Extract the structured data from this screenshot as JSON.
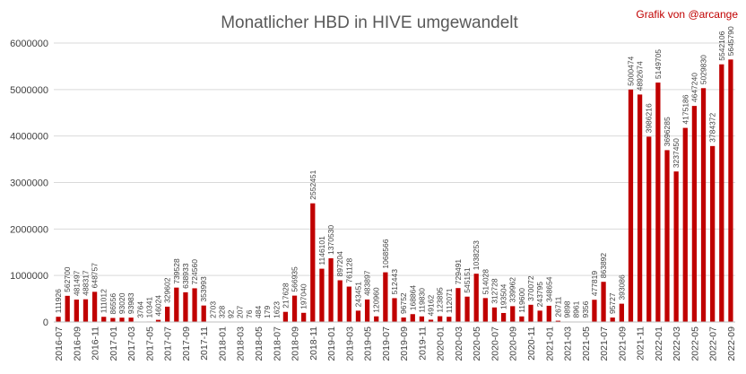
{
  "chart_data": {
    "type": "bar",
    "title": "Monatlicher HBD in HIVE umgewandelt",
    "credit": "Grafik von @arcange",
    "bar_color": "#c00000",
    "grid": true,
    "ylim": [
      0,
      6000000
    ],
    "yticks": [
      "0",
      "1000000",
      "2000000",
      "3000000",
      "4000000",
      "5000000",
      "6000000"
    ],
    "xtick_labels": [
      "2016-07",
      "2016-09",
      "2016-11",
      "2017-01",
      "2017-03",
      "2017-05",
      "2017-07",
      "2017-09",
      "2017-11",
      "2018-01",
      "2018-03",
      "2018-05",
      "2018-07",
      "2018-09",
      "2018-11",
      "2019-01",
      "2019-03",
      "2019-05",
      "2019-07",
      "2019-09",
      "2019-11",
      "2020-01",
      "2020-03",
      "2020-05",
      "2020-07",
      "2020-09",
      "2020-11",
      "2021-01",
      "2021-03",
      "2021-05",
      "2021-07",
      "2021-09",
      "2021-11",
      "2022-01",
      "2022-03",
      "2022-05",
      "2022-07",
      "2022-09"
    ],
    "categories": [
      "2016-07",
      "2016-08",
      "2016-09",
      "2016-10",
      "2016-11",
      "2016-12",
      "2017-01",
      "2017-02",
      "2017-03",
      "2017-04",
      "2017-05",
      "2017-06",
      "2017-07",
      "2017-08",
      "2017-09",
      "2017-10",
      "2017-11",
      "2017-12",
      "2018-01",
      "2018-02",
      "2018-03",
      "2018-04",
      "2018-05",
      "2018-06",
      "2018-07",
      "2018-08",
      "2018-09",
      "2018-10",
      "2018-11",
      "2018-12",
      "2019-01",
      "2019-02",
      "2019-03",
      "2019-04",
      "2019-05",
      "2019-06",
      "2019-07",
      "2019-08",
      "2019-09",
      "2019-10",
      "2019-11",
      "2019-12",
      "2020-01",
      "2020-02",
      "2020-03",
      "2020-04",
      "2020-05",
      "2020-06",
      "2020-07",
      "2020-08",
      "2020-09",
      "2020-10",
      "2020-11",
      "2020-12",
      "2021-01",
      "2021-02",
      "2021-03",
      "2021-04",
      "2021-05",
      "2021-06",
      "2021-07",
      "2021-08",
      "2021-09",
      "2021-10",
      "2021-11",
      "2021-12",
      "2022-01",
      "2022-02",
      "2022-03",
      "2022-04",
      "2022-05",
      "2022-06",
      "2022-07",
      "2022-08",
      "2022-09"
    ],
    "values": [
      111926,
      562700,
      481497,
      488317,
      648757,
      111012,
      86556,
      93020,
      93983,
      3764,
      10341,
      46024,
      329602,
      739528,
      638933,
      724560,
      353993,
      2703,
      328,
      92,
      207,
      76,
      484,
      179,
      1623,
      217628,
      566935,
      197040,
      2552451,
      1146101,
      1370530,
      897204,
      761128,
      243451,
      483897,
      120960,
      1068566,
      512443,
      96752,
      168864,
      119830,
      49162,
      123895,
      112071,
      729491,
      545151,
      1038253,
      514028,
      312728,
      193504,
      339962,
      119600,
      370072,
      243795,
      348654,
      26711,
      9898,
      8961,
      9356,
      477819,
      863892,
      95727,
      393086,
      5000474,
      4892674,
      3986216,
      5149705,
      3696285,
      3237450,
      4175186,
      4647240,
      5029830,
      3784372,
      5542106,
      5645790
    ],
    "data_labels": [
      "111926",
      "562700",
      "481497",
      "488317",
      "648757",
      "111012",
      "86556",
      "93020",
      "93983",
      "3764",
      "10341",
      "46024",
      "329602",
      "739528",
      "638933",
      "724560",
      "353993",
      "2703",
      "328",
      "92",
      "207",
      "76",
      "484",
      "179",
      "1623",
      "217628",
      "566935",
      "197040",
      "2552451",
      "1146101",
      "1370530",
      "897204",
      "761128",
      "243451",
      "483897",
      "120960",
      "1068566",
      "512443",
      "96752",
      "168864",
      "119830",
      "49162",
      "123895",
      "112071",
      "729491",
      "545151",
      "1038253",
      "514028",
      "312728",
      "193504",
      "339962",
      "119600",
      "370072",
      "243795",
      "348654",
      "26711",
      "9898",
      "8961",
      "9356",
      "477819",
      "863892",
      "95727",
      "393086",
      "5000474",
      "4892674",
      "3986216",
      "5149705",
      "3696285",
      "3237450",
      "4175186",
      "4647240",
      "5029830",
      "3784372",
      "5542106",
      "5645790"
    ]
  }
}
